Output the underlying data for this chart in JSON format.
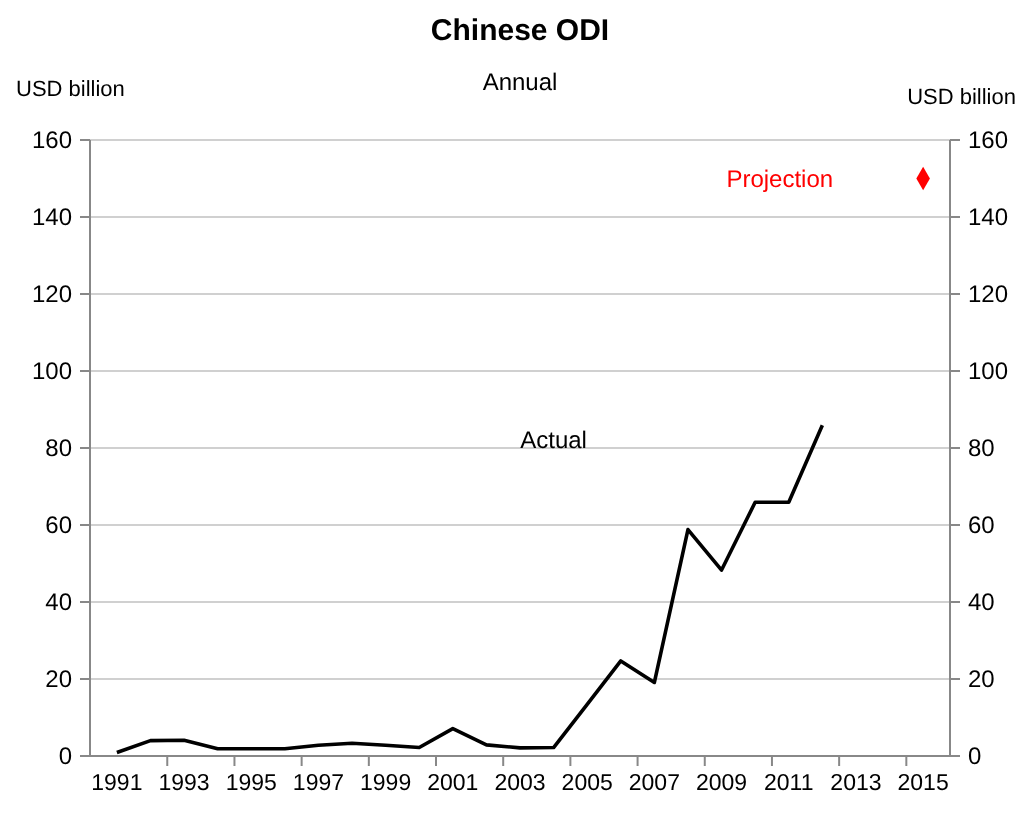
{
  "chart_data": {
    "type": "line",
    "title": "Chinese ODI",
    "subtitle": "Annual",
    "ylabel": "USD billion",
    "y2label": "USD billion",
    "categories": [
      "1991",
      null,
      "1993",
      null,
      "1995",
      null,
      "1997",
      null,
      "1999",
      null,
      "2001",
      null,
      "2003",
      null,
      "2005",
      null,
      "2007",
      null,
      "2009",
      null,
      "2011",
      null,
      "2013",
      null,
      "2015"
    ],
    "series": [
      {
        "name": "Actual",
        "type": "line",
        "color": "#000000",
        "values": [
          0.9,
          4,
          4.1,
          1.9,
          1.9,
          1.9,
          2.8,
          3.3,
          2.8,
          2.2,
          7.1,
          2.9,
          2.1,
          2.2,
          13.4,
          24.7,
          19.1,
          58.8,
          48.3,
          65.9,
          65.9,
          85.9,
          null,
          null,
          null
        ]
      },
      {
        "name": "Projection",
        "type": "scatter",
        "marker": "diamond",
        "color": "#ff0000",
        "values": [
          null,
          null,
          null,
          null,
          null,
          null,
          null,
          null,
          null,
          null,
          null,
          null,
          null,
          null,
          null,
          null,
          null,
          null,
          null,
          null,
          null,
          null,
          null,
          null,
          150
        ]
      }
    ],
    "ylim": [
      0,
      160
    ],
    "yticks": [
      0,
      20,
      40,
      60,
      80,
      100,
      120,
      140,
      160
    ],
    "y2lim": [
      0,
      160
    ],
    "y2ticks": [
      0,
      20,
      40,
      60,
      80,
      100,
      120,
      140,
      160
    ],
    "grid": "y"
  }
}
